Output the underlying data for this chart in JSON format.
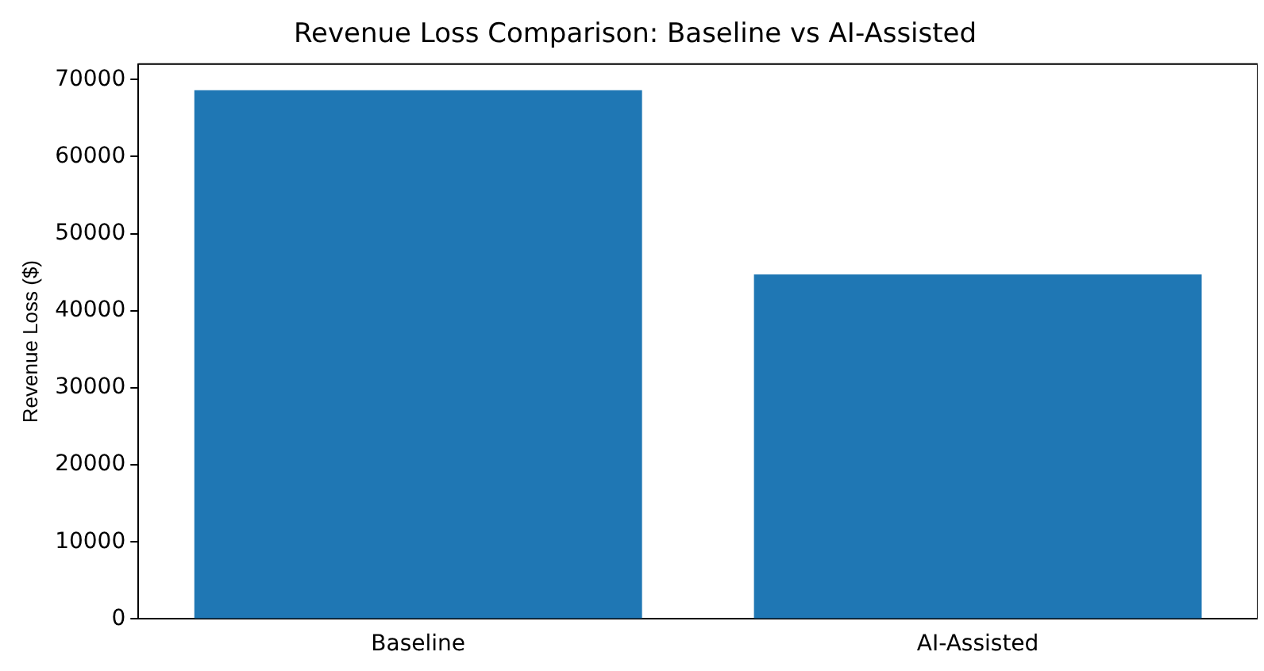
{
  "chart_data": {
    "type": "bar",
    "title": "Revenue Loss Comparison: Baseline vs AI-Assisted",
    "ylabel": "Revenue Loss ($)",
    "categories": [
      "Baseline",
      "AI-Assisted"
    ],
    "values": [
      68600,
      44700
    ],
    "color": "#1f77b4",
    "ylim": [
      0,
      72000
    ],
    "yticks": [
      0,
      10000,
      20000,
      30000,
      40000,
      50000,
      60000,
      70000
    ],
    "grid": false,
    "legend": false
  }
}
